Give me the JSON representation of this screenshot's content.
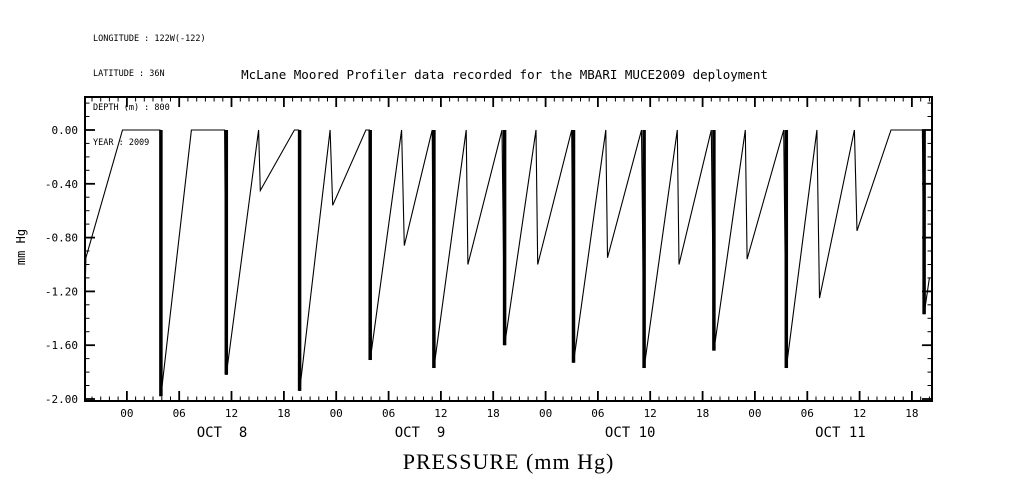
{
  "meta": {
    "longitude": "LONGITUDE : 122W(-122)",
    "latitude": "LATITUDE : 36N",
    "depth": "DEPTH (m) : 800",
    "year": "YEAR : 2009"
  },
  "chart_data": {
    "type": "line",
    "title": "McLane Moored Profiler data recorded for the MBARI MUCE2009 deployment",
    "xlabel": "PRESSURE  (mm Hg)",
    "ylabel": "mm Hg",
    "line_color": "#000000",
    "background": "#ffffff",
    "ylim": [
      -2.015,
      0.245
    ],
    "xlim_hours": [
      -4.8,
      92.3
    ],
    "y_minor_step": 0.1,
    "x_minor_step_hours": 1,
    "yticks": [
      {
        "v": 0.0,
        "label": "0.00"
      },
      {
        "v": -0.4,
        "label": "-0.40"
      },
      {
        "v": -0.8,
        "label": "-0.80"
      },
      {
        "v": -1.2,
        "label": "-1.20"
      },
      {
        "v": -1.6,
        "label": "-1.60"
      },
      {
        "v": -2.0,
        "label": "-2.00"
      }
    ],
    "xticks": [
      {
        "t": 0,
        "label": "00"
      },
      {
        "t": 6,
        "label": "06"
      },
      {
        "t": 12,
        "label": "12"
      },
      {
        "t": 18,
        "label": "18"
      },
      {
        "t": 24,
        "label": "00"
      },
      {
        "t": 30,
        "label": "06"
      },
      {
        "t": 36,
        "label": "12"
      },
      {
        "t": 42,
        "label": "18"
      },
      {
        "t": 48,
        "label": "00"
      },
      {
        "t": 54,
        "label": "06"
      },
      {
        "t": 60,
        "label": "12"
      },
      {
        "t": 66,
        "label": "18"
      },
      {
        "t": 72,
        "label": "00"
      },
      {
        "t": 78,
        "label": "06"
      },
      {
        "t": 84,
        "label": "12"
      },
      {
        "t": 90,
        "label": "18"
      }
    ],
    "day_labels": [
      {
        "t": 10.9,
        "label": "OCT  8"
      },
      {
        "t": 33.6,
        "label": "OCT  9"
      },
      {
        "t": 57.7,
        "label": "OCT 10"
      },
      {
        "t": 81.8,
        "label": "OCT 11"
      }
    ],
    "series": [
      {
        "name": "pressure_trace_mmHg_vs_hours_from_Oct8_0000",
        "points": [
          [
            -4.8,
            -1.22
          ],
          [
            -4.7,
            -0.95
          ],
          [
            -0.5,
            0.0
          ],
          [
            3.8,
            0.0
          ],
          [
            3.9,
            -1.98
          ],
          [
            7.4,
            0.0
          ],
          [
            11.2,
            0.0
          ],
          [
            11.4,
            -1.82
          ],
          [
            15.1,
            0.0
          ],
          [
            15.3,
            -0.45
          ],
          [
            19.2,
            0.0
          ],
          [
            19.7,
            0.0
          ],
          [
            19.8,
            -1.94
          ],
          [
            23.3,
            0.0
          ],
          [
            23.6,
            -0.56
          ],
          [
            27.4,
            0.0
          ],
          [
            27.8,
            0.0
          ],
          [
            27.9,
            -1.71
          ],
          [
            31.5,
            0.0
          ],
          [
            31.8,
            -0.86
          ],
          [
            35.0,
            0.0
          ],
          [
            35.2,
            -1.77
          ],
          [
            38.9,
            0.0
          ],
          [
            39.1,
            -1.0
          ],
          [
            43.0,
            0.0
          ],
          [
            43.3,
            -1.6
          ],
          [
            46.9,
            0.0
          ],
          [
            47.1,
            -1.0
          ],
          [
            51.0,
            0.0
          ],
          [
            51.2,
            -1.73
          ],
          [
            54.9,
            0.0
          ],
          [
            55.1,
            -0.95
          ],
          [
            59.0,
            0.0
          ],
          [
            59.3,
            -1.77
          ],
          [
            63.1,
            0.0
          ],
          [
            63.3,
            -1.0
          ],
          [
            67.0,
            0.0
          ],
          [
            67.3,
            -1.64
          ],
          [
            70.9,
            0.0
          ],
          [
            71.1,
            -0.96
          ],
          [
            75.3,
            0.0
          ],
          [
            75.6,
            -1.77
          ],
          [
            79.1,
            0.0
          ],
          [
            79.4,
            -1.25
          ],
          [
            83.4,
            0.0
          ],
          [
            83.7,
            -0.75
          ],
          [
            87.6,
            0.0
          ],
          [
            91.2,
            0.0
          ],
          [
            91.4,
            -1.37
          ],
          [
            92.0,
            -1.1
          ]
        ]
      }
    ],
    "dive_events": [
      {
        "t": 3.9,
        "depth": -1.98
      },
      {
        "t": 11.4,
        "depth": -1.82
      },
      {
        "t": 19.8,
        "depth": -1.94
      },
      {
        "t": 27.9,
        "depth": -1.71
      },
      {
        "t": 35.2,
        "depth": -1.77
      },
      {
        "t": 43.3,
        "depth": -1.6
      },
      {
        "t": 51.2,
        "depth": -1.73
      },
      {
        "t": 59.3,
        "depth": -1.77
      },
      {
        "t": 67.3,
        "depth": -1.64
      },
      {
        "t": 75.6,
        "depth": -1.77
      },
      {
        "t": 91.4,
        "depth": -1.37
      }
    ]
  }
}
